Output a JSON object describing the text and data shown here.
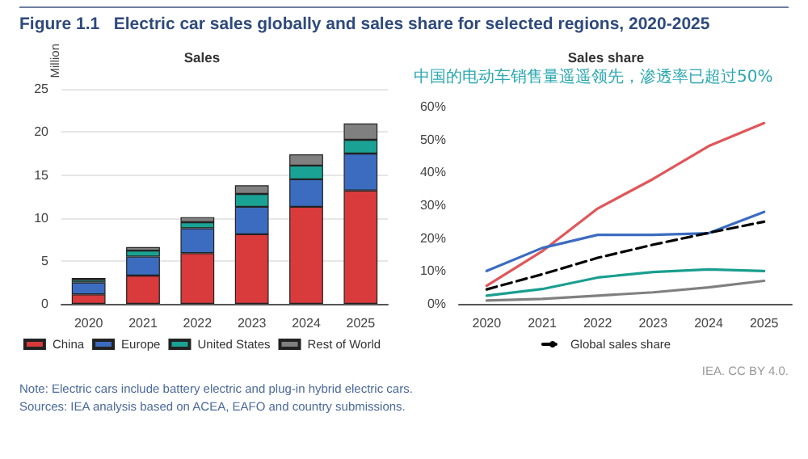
{
  "chart_data": [
    {
      "type": "bar",
      "title": "Figure 1.1   Electric car sales globally and sales share for selected regions, 2020-2025",
      "subtitle": "Sales",
      "ylabel": "Million",
      "stacked": true,
      "categories": [
        "2020",
        "2021",
        "2022",
        "2023",
        "2024",
        "2025"
      ],
      "series": [
        {
          "name": "China",
          "color": "#d93a3c",
          "values": [
            1.1,
            3.3,
            5.9,
            8.1,
            11.3,
            13.2
          ]
        },
        {
          "name": "Europe",
          "color": "#3b6cc0",
          "values": [
            1.4,
            2.2,
            2.9,
            3.2,
            3.2,
            4.3
          ]
        },
        {
          "name": "United States",
          "color": "#1aa394",
          "values": [
            0.3,
            0.7,
            0.7,
            1.5,
            1.6,
            1.6
          ]
        },
        {
          "name": "Rest of World",
          "color": "#808080",
          "values": [
            0.2,
            0.4,
            0.6,
            1.0,
            1.3,
            1.9
          ]
        }
      ],
      "ylim": [
        0,
        25
      ],
      "yticks": [
        0,
        5,
        10,
        15,
        20,
        25
      ],
      "grid": "y",
      "legend": "bottom",
      "annotations": [
        "IEA. CC BY 4.0.",
        "Note: Electric cars include battery electric and plug-in hybrid electric cars.",
        "Sources: IEA analysis based on ACEA, EAFO and country submissions."
      ]
    },
    {
      "type": "line",
      "title": "Sales share",
      "marker": "none",
      "categories": [
        "2020",
        "2021",
        "2022",
        "2023",
        "2024",
        "2025"
      ],
      "series": [
        {
          "color": "#e0575a",
          "values": [
            5.5,
            16,
            29,
            38,
            48,
            55
          ]
        },
        {
          "color": "#3b6cc0",
          "values": [
            10,
            17,
            21,
            21,
            21.5,
            28
          ]
        },
        {
          "color": "#1a9e8f",
          "values": [
            2.5,
            4.5,
            8,
            9.7,
            10.5,
            10
          ]
        },
        {
          "color": "#808080",
          "values": [
            1,
            1.5,
            2.5,
            3.5,
            5,
            7
          ]
        },
        {
          "name": "Global sales share",
          "color": "#000000",
          "line_style": "dashed",
          "values": [
            4.4,
            9,
            14,
            18,
            21.6,
            25
          ]
        }
      ],
      "ylim": [
        0,
        60
      ],
      "yticks": [
        {
          "value": 0,
          "label": "0%"
        },
        {
          "value": 10,
          "label": "10%"
        },
        {
          "value": 20,
          "label": "20%"
        },
        {
          "value": 30,
          "label": "30%"
        },
        {
          "value": 40,
          "label": "40%"
        },
        {
          "value": 50,
          "label": "50%"
        },
        {
          "value": 60,
          "label": "60%"
        }
      ],
      "legend": "bottom",
      "annotations": [
        "中国的电动车销售量遥遥领先，渗透率已超过50%"
      ]
    }
  ]
}
